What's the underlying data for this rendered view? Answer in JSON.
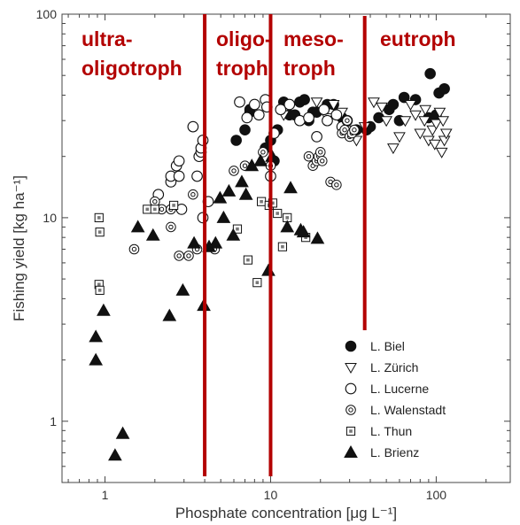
{
  "chart_data": {
    "type": "scatter",
    "title": "",
    "xlabel": "Phosphate concentration [μg L⁻¹]",
    "ylabel": "Fishing yield [kg ha⁻¹]",
    "x_scale": "log",
    "y_scale": "log",
    "xlim": [
      0.55,
      280
    ],
    "ylim": [
      0.5,
      100
    ],
    "x_ticks": [
      {
        "value": 1,
        "label": "1"
      },
      {
        "value": 10,
        "label": "10"
      },
      {
        "value": 100,
        "label": "100"
      }
    ],
    "y_ticks": [
      {
        "value": 1,
        "label": "1"
      },
      {
        "value": 10,
        "label": "10"
      },
      {
        "value": 100,
        "label": "100"
      }
    ],
    "grid": false,
    "legend_position": "bottom-right",
    "boundaries": [
      4,
      10,
      37
    ],
    "boundary_color": "#b30000",
    "zones": [
      {
        "lines": [
          "ultra-",
          "oligotroph"
        ],
        "x_from": 0.6,
        "x_to": 4
      },
      {
        "lines": [
          "oligo-",
          "troph"
        ],
        "x_from": 4,
        "x_to": 10
      },
      {
        "lines": [
          "meso-",
          "troph"
        ],
        "x_from": 10,
        "x_to": 37
      },
      {
        "lines": [
          "eutroph"
        ],
        "x_from": 37,
        "x_to": 280
      }
    ],
    "series": [
      {
        "name": "L. Biel",
        "marker": "filled-circle",
        "points": [
          [
            6.2,
            24
          ],
          [
            7.0,
            27
          ],
          [
            7.5,
            33
          ],
          [
            7.5,
            34
          ],
          [
            9.3,
            22
          ],
          [
            10,
            24
          ],
          [
            10.5,
            19
          ],
          [
            11,
            27
          ],
          [
            12,
            37
          ],
          [
            13,
            32
          ],
          [
            14,
            32
          ],
          [
            15,
            37
          ],
          [
            16,
            38
          ],
          [
            17,
            30
          ],
          [
            18,
            33
          ],
          [
            19,
            33
          ],
          [
            22,
            36
          ],
          [
            24,
            36
          ],
          [
            27,
            31
          ],
          [
            33,
            27
          ],
          [
            38,
            27
          ],
          [
            45,
            31
          ],
          [
            52,
            34
          ],
          [
            60,
            30
          ],
          [
            64,
            39
          ],
          [
            75,
            38
          ],
          [
            90,
            31
          ],
          [
            92,
            51
          ],
          [
            100,
            32
          ],
          [
            104,
            41
          ],
          [
            112,
            43
          ],
          [
            55,
            36
          ],
          [
            40,
            28
          ]
        ]
      },
      {
        "name": "L. Zürich",
        "marker": "open-triangle-down",
        "points": [
          [
            12,
            32
          ],
          [
            19,
            37
          ],
          [
            22,
            31
          ],
          [
            24,
            36
          ],
          [
            27,
            33
          ],
          [
            30,
            27
          ],
          [
            33,
            24
          ],
          [
            37,
            28
          ],
          [
            42,
            37
          ],
          [
            47,
            35
          ],
          [
            50,
            30
          ],
          [
            55,
            22
          ],
          [
            60,
            25
          ],
          [
            65,
            30
          ],
          [
            70,
            36
          ],
          [
            75,
            32
          ],
          [
            80,
            26
          ],
          [
            85,
            30
          ],
          [
            90,
            24
          ],
          [
            95,
            27
          ],
          [
            100,
            29
          ],
          [
            105,
            33
          ],
          [
            108,
            21
          ],
          [
            110,
            30
          ],
          [
            112,
            24
          ],
          [
            86,
            34
          ],
          [
            98,
            23
          ],
          [
            115,
            26
          ]
        ]
      },
      {
        "name": "L. Lucerne",
        "marker": "open-circle",
        "points": [
          [
            2.1,
            13
          ],
          [
            2.5,
            15
          ],
          [
            2.5,
            16
          ],
          [
            2.7,
            18
          ],
          [
            2.8,
            19
          ],
          [
            2.8,
            16
          ],
          [
            2.9,
            11
          ],
          [
            3.4,
            28
          ],
          [
            3.6,
            16
          ],
          [
            3.7,
            20
          ],
          [
            3.8,
            21
          ],
          [
            3.8,
            22
          ],
          [
            3.9,
            24
          ],
          [
            3.9,
            10
          ],
          [
            4.2,
            12
          ],
          [
            6.5,
            37
          ],
          [
            7.2,
            31
          ],
          [
            8.0,
            36
          ],
          [
            8.5,
            32
          ],
          [
            9.3,
            38
          ],
          [
            9.5,
            35
          ],
          [
            10.5,
            26
          ],
          [
            11.5,
            34
          ],
          [
            13,
            36
          ],
          [
            15,
            30
          ],
          [
            17,
            31
          ],
          [
            19,
            25
          ],
          [
            21,
            34
          ],
          [
            22,
            30
          ],
          [
            25,
            32
          ],
          [
            27,
            28
          ],
          [
            29,
            30
          ],
          [
            10,
            16
          ]
        ]
      },
      {
        "name": "L. Walenstadt",
        "marker": "double-circle",
        "points": [
          [
            1.5,
            7
          ],
          [
            2.0,
            12
          ],
          [
            2.2,
            11
          ],
          [
            2.5,
            9
          ],
          [
            2.5,
            11
          ],
          [
            2.8,
            6.5
          ],
          [
            3.2,
            6.5
          ],
          [
            3.4,
            13
          ],
          [
            3.6,
            7
          ],
          [
            4.6,
            7
          ],
          [
            6.0,
            17
          ],
          [
            7.0,
            18
          ],
          [
            9.0,
            21
          ],
          [
            10,
            18
          ],
          [
            17,
            20
          ],
          [
            18,
            18
          ],
          [
            19,
            19
          ],
          [
            19.5,
            20
          ],
          [
            20,
            21
          ],
          [
            20.5,
            19
          ],
          [
            23,
            15
          ],
          [
            25,
            14.5
          ],
          [
            27,
            26
          ],
          [
            28,
            27
          ],
          [
            29,
            30
          ],
          [
            30,
            25
          ],
          [
            31,
            26
          ],
          [
            32,
            27
          ]
        ]
      },
      {
        "name": "L. Thun",
        "marker": "dotted-square",
        "points": [
          [
            0.92,
            10
          ],
          [
            0.93,
            8.5
          ],
          [
            0.92,
            4.7
          ],
          [
            0.93,
            4.4
          ],
          [
            1.8,
            11
          ],
          [
            2.0,
            11
          ],
          [
            2.6,
            11.5
          ],
          [
            6.3,
            8.8
          ],
          [
            7.3,
            6.2
          ],
          [
            8.3,
            4.8
          ],
          [
            8.8,
            12
          ],
          [
            9.8,
            11.5
          ],
          [
            10.3,
            11.8
          ],
          [
            11.0,
            10.5
          ],
          [
            11.8,
            7.2
          ],
          [
            12.6,
            10
          ],
          [
            16.3,
            8
          ]
        ]
      },
      {
        "name": "L. Brienz",
        "marker": "filled-triangle-up",
        "points": [
          [
            0.88,
            2.6
          ],
          [
            0.88,
            2.0
          ],
          [
            0.98,
            3.5
          ],
          [
            1.15,
            0.68
          ],
          [
            1.28,
            0.87
          ],
          [
            1.58,
            9
          ],
          [
            1.95,
            8.2
          ],
          [
            2.45,
            3.3
          ],
          [
            2.95,
            4.4
          ],
          [
            3.45,
            7.5
          ],
          [
            3.95,
            3.7
          ],
          [
            4.25,
            7.2
          ],
          [
            4.65,
            7.5
          ],
          [
            4.95,
            12.5
          ],
          [
            5.2,
            10
          ],
          [
            5.6,
            13.5
          ],
          [
            5.95,
            8.2
          ],
          [
            6.7,
            15
          ],
          [
            7.7,
            18
          ],
          [
            8.7,
            19
          ],
          [
            9.7,
            5.5
          ],
          [
            10.2,
            20
          ],
          [
            13.2,
            14
          ],
          [
            15.2,
            8.7
          ],
          [
            19.2,
            7.9
          ],
          [
            7.1,
            13
          ],
          [
            12.6,
            9
          ],
          [
            15.8,
            8.5
          ]
        ]
      }
    ]
  }
}
